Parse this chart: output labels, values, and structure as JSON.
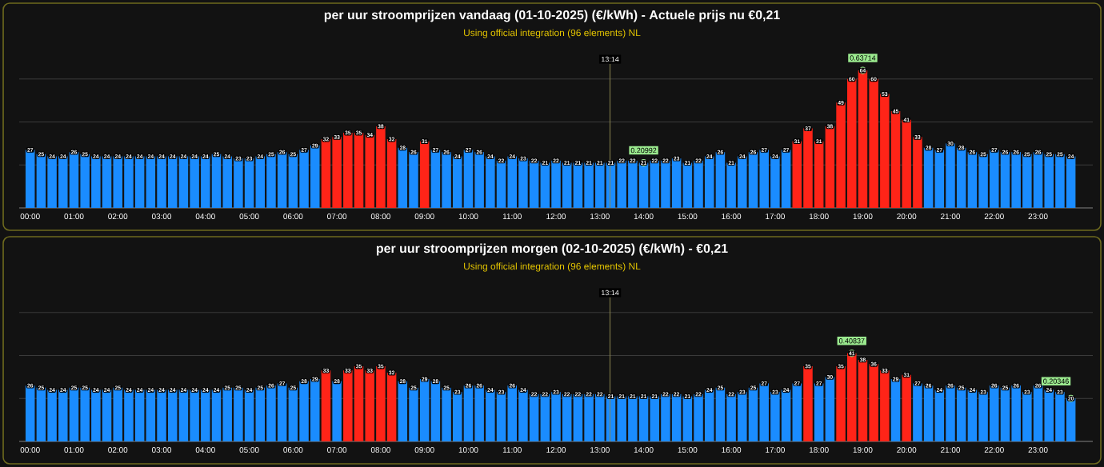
{
  "chart_data": [
    {
      "type": "bar",
      "title": "per uur stroomprijzen vandaag (01-10-2025) (€/kWh) - Actuele prijs nu €0,21",
      "subtitle": "Using official integration (96 elements) NL",
      "x": [
        0,
        0.25,
        0.5,
        0.75,
        1,
        1.25,
        1.5,
        1.75,
        2,
        2.25,
        2.5,
        2.75,
        3,
        3.25,
        3.5,
        3.75,
        4,
        4.25,
        4.5,
        4.75,
        5,
        5.25,
        5.5,
        5.75,
        6,
        6.25,
        6.5,
        6.75,
        7,
        7.25,
        7.5,
        7.75,
        8,
        8.25,
        8.5,
        8.75,
        9,
        9.25,
        9.5,
        9.75,
        10,
        10.25,
        10.5,
        10.75,
        11,
        11.25,
        11.5,
        11.75,
        12,
        12.25,
        12.5,
        12.75,
        13,
        13.25,
        13.5,
        13.75,
        14,
        14.25,
        14.5,
        14.75,
        15,
        15.25,
        15.5,
        15.75,
        16,
        16.25,
        16.5,
        16.75,
        17,
        17.25,
        17.5,
        17.75,
        18,
        18.25,
        18.5,
        18.75,
        19,
        19.25,
        19.5,
        19.75,
        20,
        20.25,
        20.5,
        20.75,
        21,
        21.25,
        21.5,
        21.75,
        22,
        22.25,
        22.5,
        22.75,
        23,
        23.25,
        23.5,
        23.75
      ],
      "values": [
        27,
        25,
        24,
        24,
        26,
        25,
        24,
        24,
        24,
        24,
        24,
        24,
        24,
        24,
        24,
        24,
        24,
        25,
        24,
        23,
        23,
        24,
        25,
        26,
        25,
        27,
        29,
        32,
        33,
        35,
        35,
        34,
        38,
        32,
        28,
        26,
        31,
        27,
        26,
        24,
        27,
        26,
        24,
        22,
        24,
        23,
        22,
        21,
        22,
        21,
        21,
        21,
        21,
        21,
        22,
        22,
        21,
        22,
        22,
        23,
        21,
        22,
        24,
        26,
        21,
        24,
        26,
        27,
        24,
        27,
        31,
        37,
        31,
        38,
        49,
        60,
        64,
        60,
        53,
        45,
        41,
        33,
        28,
        27,
        30,
        28,
        26,
        25,
        27,
        26,
        26,
        25,
        26,
        25,
        25,
        24
      ],
      "colors": [
        "#1a8cff",
        "#1a8cff",
        "#1a8cff",
        "#1a8cff",
        "#1a8cff",
        "#1a8cff",
        "#1a8cff",
        "#1a8cff",
        "#1a8cff",
        "#1a8cff",
        "#1a8cff",
        "#1a8cff",
        "#1a8cff",
        "#1a8cff",
        "#1a8cff",
        "#1a8cff",
        "#1a8cff",
        "#1a8cff",
        "#1a8cff",
        "#1a8cff",
        "#1a8cff",
        "#1a8cff",
        "#1a8cff",
        "#1a8cff",
        "#1a8cff",
        "#1a8cff",
        "#1a8cff",
        "#ff2418",
        "#ff2418",
        "#ff2418",
        "#ff2418",
        "#ff2418",
        "#ff2418",
        "#ff2418",
        "#1a8cff",
        "#1a8cff",
        "#ff2418",
        "#1a8cff",
        "#1a8cff",
        "#1a8cff",
        "#1a8cff",
        "#1a8cff",
        "#1a8cff",
        "#1a8cff",
        "#1a8cff",
        "#1a8cff",
        "#1a8cff",
        "#1a8cff",
        "#1a8cff",
        "#1a8cff",
        "#1a8cff",
        "#1a8cff",
        "#1a8cff",
        "#1a8cff",
        "#1a8cff",
        "#1a8cff",
        "#1a8cff",
        "#1a8cff",
        "#1a8cff",
        "#1a8cff",
        "#1a8cff",
        "#1a8cff",
        "#1a8cff",
        "#1a8cff",
        "#1a8cff",
        "#1a8cff",
        "#1a8cff",
        "#1a8cff",
        "#1a8cff",
        "#1a8cff",
        "#ff2418",
        "#ff2418",
        "#ff2418",
        "#ff2418",
        "#ff2418",
        "#ff2418",
        "#ff2418",
        "#ff2418",
        "#ff2418",
        "#ff2418",
        "#ff2418",
        "#ff2418",
        "#1a8cff",
        "#1a8cff",
        "#1a8cff",
        "#1a8cff",
        "#1a8cff",
        "#1a8cff",
        "#1a8cff",
        "#1a8cff",
        "#1a8cff",
        "#1a8cff",
        "#1a8cff",
        "#1a8cff",
        "#1a8cff",
        "#1a8cff"
      ],
      "xlim": [
        -0.25,
        24.25
      ],
      "ylim": [
        0,
        67
      ],
      "xticks": [
        {
          "value": 0,
          "label": "00:00"
        },
        {
          "value": 1,
          "label": "01:00"
        },
        {
          "value": 2,
          "label": "02:00"
        },
        {
          "value": 3,
          "label": "03:00"
        },
        {
          "value": 4,
          "label": "04:00"
        },
        {
          "value": 5,
          "label": "05:00"
        },
        {
          "value": 6,
          "label": "06:00"
        },
        {
          "value": 7,
          "label": "07:00"
        },
        {
          "value": 8,
          "label": "08:00"
        },
        {
          "value": 9,
          "label": "09:00"
        },
        {
          "value": 10,
          "label": "10:00"
        },
        {
          "value": 11,
          "label": "11:00"
        },
        {
          "value": 12,
          "label": "12:00"
        },
        {
          "value": 13,
          "label": "13:00"
        },
        {
          "value": 14,
          "label": "14:00"
        },
        {
          "value": 15,
          "label": "15:00"
        },
        {
          "value": 16,
          "label": "16:00"
        },
        {
          "value": 17,
          "label": "17:00"
        },
        {
          "value": 18,
          "label": "18:00"
        },
        {
          "value": 19,
          "label": "19:00"
        },
        {
          "value": 20,
          "label": "20:00"
        },
        {
          "value": 21,
          "label": "21:00"
        },
        {
          "value": 22,
          "label": "22:00"
        },
        {
          "value": 23,
          "label": "23:00"
        }
      ],
      "data_labels": true,
      "grid": "y",
      "tick_labels": "x",
      "annotations": [
        {
          "text": "0.63714",
          "x": 19,
          "y": 64
        },
        {
          "text": "0.20992",
          "x": 14,
          "y": 21
        }
      ],
      "ref_lines": [
        {
          "axis": "x",
          "value": 13.233,
          "label": "13:14"
        }
      ]
    },
    {
      "type": "bar",
      "title": "per uur stroomprijzen morgen (02-10-2025) (€/kWh) - €0,21",
      "subtitle": "Using official integration (96 elements) NL",
      "x": [
        0,
        0.25,
        0.5,
        0.75,
        1,
        1.25,
        1.5,
        1.75,
        2,
        2.25,
        2.5,
        2.75,
        3,
        3.25,
        3.5,
        3.75,
        4,
        4.25,
        4.5,
        4.75,
        5,
        5.25,
        5.5,
        5.75,
        6,
        6.25,
        6.5,
        6.75,
        7,
        7.25,
        7.5,
        7.75,
        8,
        8.25,
        8.5,
        8.75,
        9,
        9.25,
        9.5,
        9.75,
        10,
        10.25,
        10.5,
        10.75,
        11,
        11.25,
        11.5,
        11.75,
        12,
        12.25,
        12.5,
        12.75,
        13,
        13.25,
        13.5,
        13.75,
        14,
        14.25,
        14.5,
        14.75,
        15,
        15.25,
        15.5,
        15.75,
        16,
        16.25,
        16.5,
        16.75,
        17,
        17.25,
        17.5,
        17.75,
        18,
        18.25,
        18.5,
        18.75,
        19,
        19.25,
        19.5,
        19.75,
        20,
        20.25,
        20.5,
        20.75,
        21,
        21.25,
        21.5,
        21.75,
        22,
        22.25,
        22.5,
        22.75,
        23,
        23.25,
        23.5,
        23.75
      ],
      "values": [
        26,
        25,
        24,
        24,
        25,
        25,
        24,
        24,
        25,
        24,
        24,
        24,
        24,
        24,
        24,
        24,
        24,
        24,
        25,
        25,
        24,
        25,
        26,
        27,
        25,
        28,
        29,
        33,
        28,
        33,
        35,
        33,
        35,
        32,
        28,
        25,
        29,
        28,
        25,
        23,
        26,
        26,
        24,
        23,
        26,
        24,
        22,
        22,
        23,
        22,
        22,
        22,
        22,
        21,
        21,
        21,
        21,
        21,
        22,
        22,
        21,
        22,
        24,
        25,
        22,
        23,
        25,
        27,
        23,
        24,
        27,
        35,
        27,
        30,
        35,
        41,
        38,
        36,
        33,
        29,
        31,
        27,
        26,
        24,
        26,
        25,
        24,
        23,
        26,
        25,
        26,
        23,
        26,
        24,
        23,
        20
      ],
      "colors": [
        "#1a8cff",
        "#1a8cff",
        "#1a8cff",
        "#1a8cff",
        "#1a8cff",
        "#1a8cff",
        "#1a8cff",
        "#1a8cff",
        "#1a8cff",
        "#1a8cff",
        "#1a8cff",
        "#1a8cff",
        "#1a8cff",
        "#1a8cff",
        "#1a8cff",
        "#1a8cff",
        "#1a8cff",
        "#1a8cff",
        "#1a8cff",
        "#1a8cff",
        "#1a8cff",
        "#1a8cff",
        "#1a8cff",
        "#1a8cff",
        "#1a8cff",
        "#1a8cff",
        "#1a8cff",
        "#ff2418",
        "#1a8cff",
        "#ff2418",
        "#ff2418",
        "#ff2418",
        "#ff2418",
        "#ff2418",
        "#1a8cff",
        "#1a8cff",
        "#1a8cff",
        "#1a8cff",
        "#1a8cff",
        "#1a8cff",
        "#1a8cff",
        "#1a8cff",
        "#1a8cff",
        "#1a8cff",
        "#1a8cff",
        "#1a8cff",
        "#1a8cff",
        "#1a8cff",
        "#1a8cff",
        "#1a8cff",
        "#1a8cff",
        "#1a8cff",
        "#1a8cff",
        "#1a8cff",
        "#1a8cff",
        "#1a8cff",
        "#1a8cff",
        "#1a8cff",
        "#1a8cff",
        "#1a8cff",
        "#1a8cff",
        "#1a8cff",
        "#1a8cff",
        "#1a8cff",
        "#1a8cff",
        "#1a8cff",
        "#1a8cff",
        "#1a8cff",
        "#1a8cff",
        "#1a8cff",
        "#1a8cff",
        "#ff2418",
        "#1a8cff",
        "#1a8cff",
        "#ff2418",
        "#ff2418",
        "#ff2418",
        "#ff2418",
        "#ff2418",
        "#1a8cff",
        "#ff2418",
        "#1a8cff",
        "#1a8cff",
        "#1a8cff",
        "#1a8cff",
        "#1a8cff",
        "#1a8cff",
        "#1a8cff",
        "#1a8cff",
        "#1a8cff",
        "#1a8cff",
        "#1a8cff",
        "#1a8cff",
        "#1a8cff",
        "#1a8cff",
        "#1a8cff"
      ],
      "xlim": [
        -0.25,
        24.25
      ],
      "ylim": [
        0,
        67
      ],
      "xticks": [
        {
          "value": 0,
          "label": "00:00"
        },
        {
          "value": 1,
          "label": "01:00"
        },
        {
          "value": 2,
          "label": "02:00"
        },
        {
          "value": 3,
          "label": "03:00"
        },
        {
          "value": 4,
          "label": "04:00"
        },
        {
          "value": 5,
          "label": "05:00"
        },
        {
          "value": 6,
          "label": "06:00"
        },
        {
          "value": 7,
          "label": "07:00"
        },
        {
          "value": 8,
          "label": "08:00"
        },
        {
          "value": 9,
          "label": "09:00"
        },
        {
          "value": 10,
          "label": "10:00"
        },
        {
          "value": 11,
          "label": "11:00"
        },
        {
          "value": 12,
          "label": "12:00"
        },
        {
          "value": 13,
          "label": "13:00"
        },
        {
          "value": 14,
          "label": "14:00"
        },
        {
          "value": 15,
          "label": "15:00"
        },
        {
          "value": 16,
          "label": "16:00"
        },
        {
          "value": 17,
          "label": "17:00"
        },
        {
          "value": 18,
          "label": "18:00"
        },
        {
          "value": 19,
          "label": "19:00"
        },
        {
          "value": 20,
          "label": "20:00"
        },
        {
          "value": 21,
          "label": "21:00"
        },
        {
          "value": 22,
          "label": "22:00"
        },
        {
          "value": 23,
          "label": "23:00"
        }
      ],
      "data_labels": true,
      "grid": "y",
      "tick_labels": "x",
      "annotations": [
        {
          "text": "0.40837",
          "x": 18.75,
          "y": 41
        },
        {
          "text": "0.20346",
          "x": 23.75,
          "y": 20
        }
      ],
      "ref_lines": [
        {
          "axis": "x",
          "value": 13.233,
          "label": "13:14"
        }
      ]
    }
  ]
}
